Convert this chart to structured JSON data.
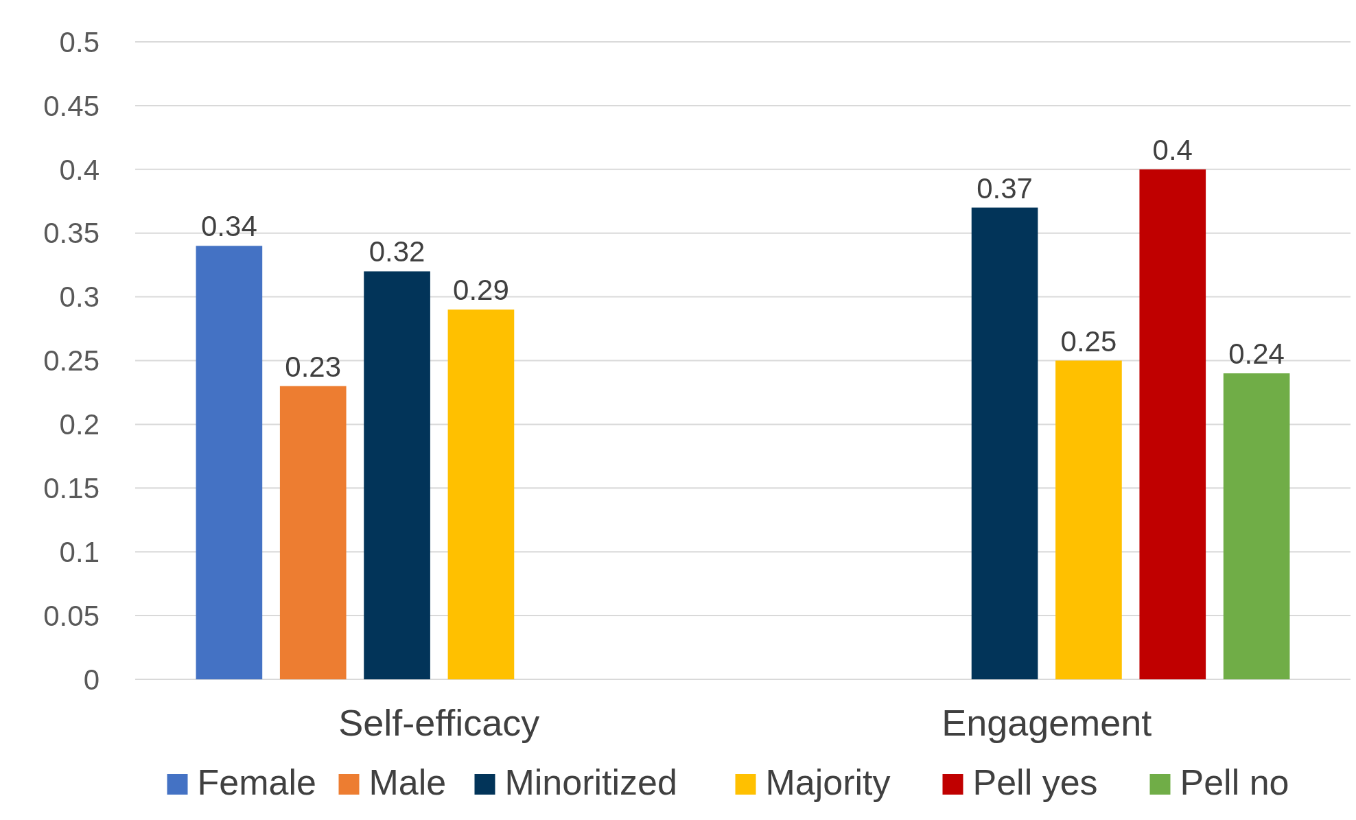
{
  "chart_data": {
    "type": "bar",
    "categories": [
      "Self-efficacy",
      "Engagement"
    ],
    "series": [
      {
        "name": "Female",
        "color": "#4472c4",
        "values": [
          0.34,
          null
        ]
      },
      {
        "name": "Male",
        "color": "#ed7d31",
        "values": [
          0.23,
          null
        ]
      },
      {
        "name": "Minoritized",
        "color": "#023459",
        "values": [
          0.32,
          0.37
        ]
      },
      {
        "name": "Majority",
        "color": "#ffc000",
        "values": [
          0.29,
          0.25
        ]
      },
      {
        "name": "Pell yes",
        "color": "#c00000",
        "values": [
          null,
          0.4
        ]
      },
      {
        "name": "Pell no",
        "color": "#70ad47",
        "values": [
          null,
          0.24
        ]
      }
    ],
    "ylim": [
      0,
      0.5
    ],
    "yticks": [
      0,
      0.05,
      0.1,
      0.15,
      0.2,
      0.25,
      0.3,
      0.35,
      0.4,
      0.45,
      0.5
    ],
    "grid": true,
    "data_labels": true,
    "legend": "bottom"
  }
}
